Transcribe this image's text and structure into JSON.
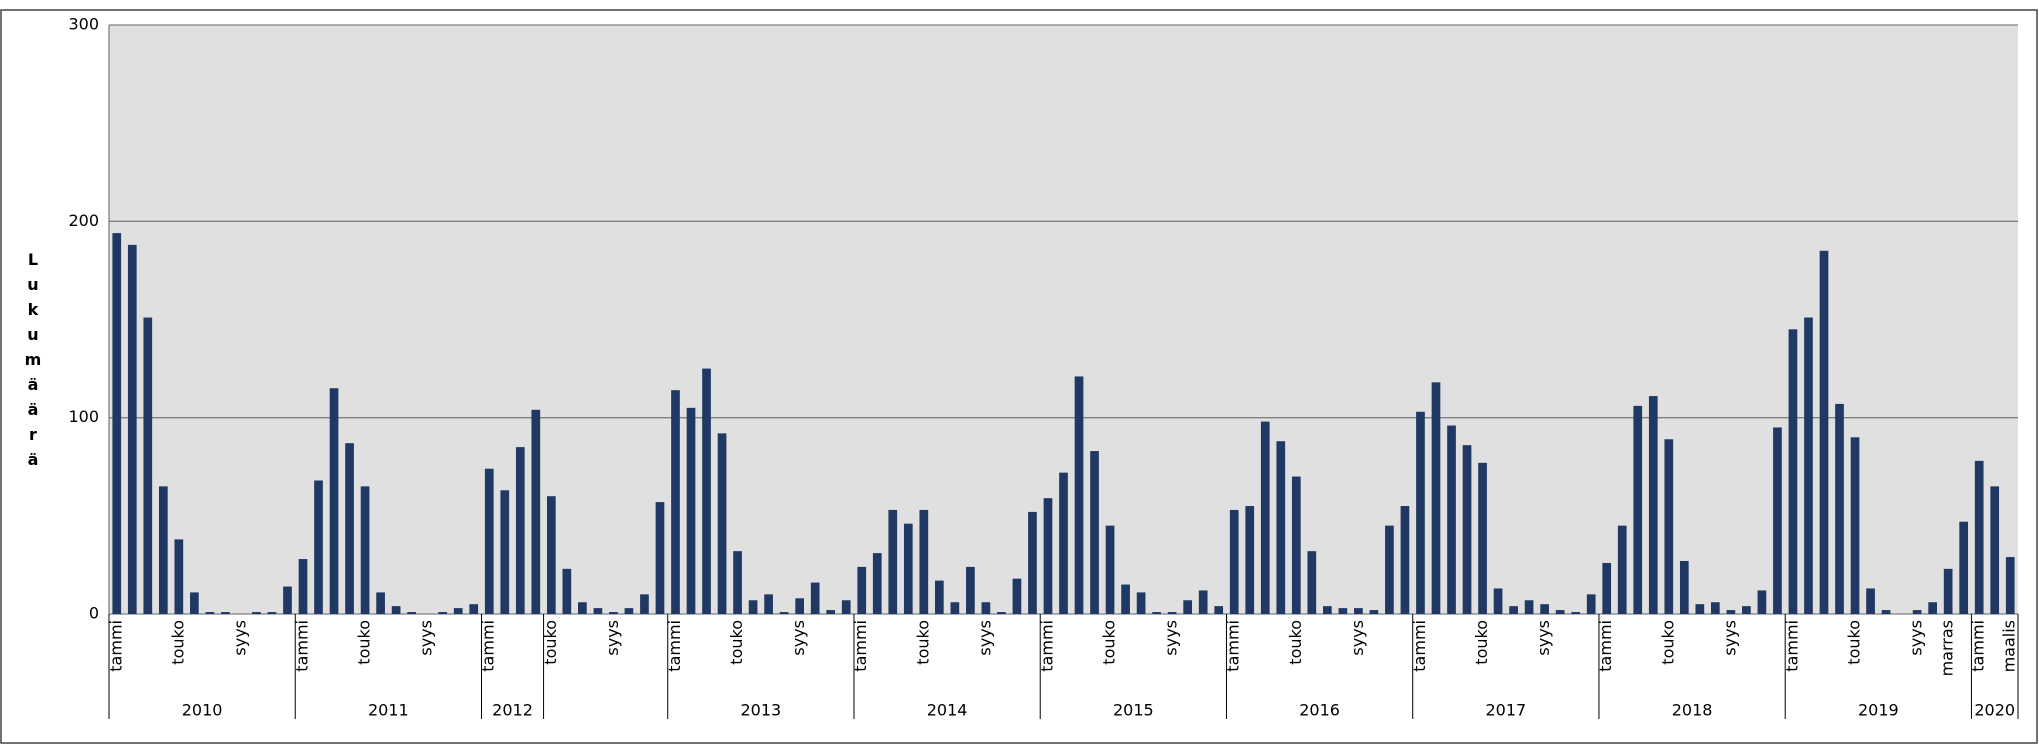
{
  "chart_data": {
    "type": "bar",
    "y_label": "Lukumäärä",
    "categories": [
      "tammi",
      null,
      null,
      null,
      "touko",
      null,
      null,
      null,
      "syys",
      null,
      null,
      null,
      "tammi",
      null,
      null,
      null,
      "touko",
      null,
      null,
      null,
      "syys",
      null,
      null,
      null,
      "tammi",
      null,
      null,
      null,
      "touko",
      null,
      null,
      null,
      "syys",
      null,
      null,
      null,
      "tammi",
      null,
      null,
      null,
      "touko",
      null,
      null,
      null,
      "syys",
      null,
      null,
      null,
      "tammi",
      null,
      null,
      null,
      "touko",
      null,
      null,
      null,
      "syys",
      null,
      null,
      null,
      "tammi",
      null,
      null,
      null,
      "touko",
      null,
      null,
      null,
      "syys",
      null,
      null,
      null,
      "tammi",
      null,
      null,
      null,
      "touko",
      null,
      null,
      null,
      "syys",
      null,
      null,
      null,
      "tammi",
      null,
      null,
      null,
      "touko",
      null,
      null,
      null,
      "syys",
      null,
      null,
      null,
      "tammi",
      null,
      null,
      null,
      "touko",
      null,
      null,
      null,
      "syys",
      null,
      null,
      null,
      "tammi",
      null,
      null,
      null,
      "touko",
      null,
      null,
      null,
      "syys",
      null,
      "marras",
      null,
      "tammi",
      null,
      "maalis"
    ],
    "groups": [
      {
        "label": "2010",
        "span": 12
      },
      {
        "label": "2011",
        "span": 12
      },
      {
        "label": "2012",
        "span": 4
      },
      {
        "label": null,
        "span": 8
      },
      {
        "label": "2013",
        "span": 12
      },
      {
        "label": "2014",
        "span": 12
      },
      {
        "label": "2015",
        "span": 12
      },
      {
        "label": "2016",
        "span": 12
      },
      {
        "label": "2017",
        "span": 12
      },
      {
        "label": "2018",
        "span": 12
      },
      {
        "label": "2019",
        "span": 12
      },
      {
        "label": "2020",
        "span": 3
      }
    ],
    "values": [
      194,
      188,
      151,
      65,
      38,
      11,
      1,
      1,
      0,
      1,
      1,
      14,
      28,
      68,
      115,
      87,
      65,
      11,
      4,
      1,
      0,
      1,
      3,
      5,
      74,
      63,
      85,
      104,
      60,
      23,
      6,
      3,
      1,
      3,
      10,
      57,
      114,
      105,
      125,
      92,
      32,
      7,
      10,
      1,
      8,
      16,
      2,
      7,
      24,
      31,
      53,
      46,
      53,
      17,
      6,
      24,
      6,
      1,
      18,
      52,
      59,
      72,
      121,
      83,
      45,
      15,
      11,
      1,
      1,
      7,
      12,
      4,
      53,
      55,
      98,
      88,
      70,
      32,
      4,
      3,
      3,
      2,
      45,
      55,
      103,
      118,
      96,
      86,
      77,
      13,
      4,
      7,
      5,
      2,
      1,
      10,
      26,
      45,
      106,
      111,
      89,
      27,
      5,
      6,
      2,
      4,
      12,
      95,
      145,
      151,
      185,
      107,
      90,
      13,
      2,
      0,
      2,
      6,
      23,
      47,
      78,
      65,
      29
    ],
    "color": "#1f3864",
    "ylim": [
      0,
      300
    ],
    "yticks": [
      0,
      100,
      200,
      300
    ],
    "grid": true
  }
}
